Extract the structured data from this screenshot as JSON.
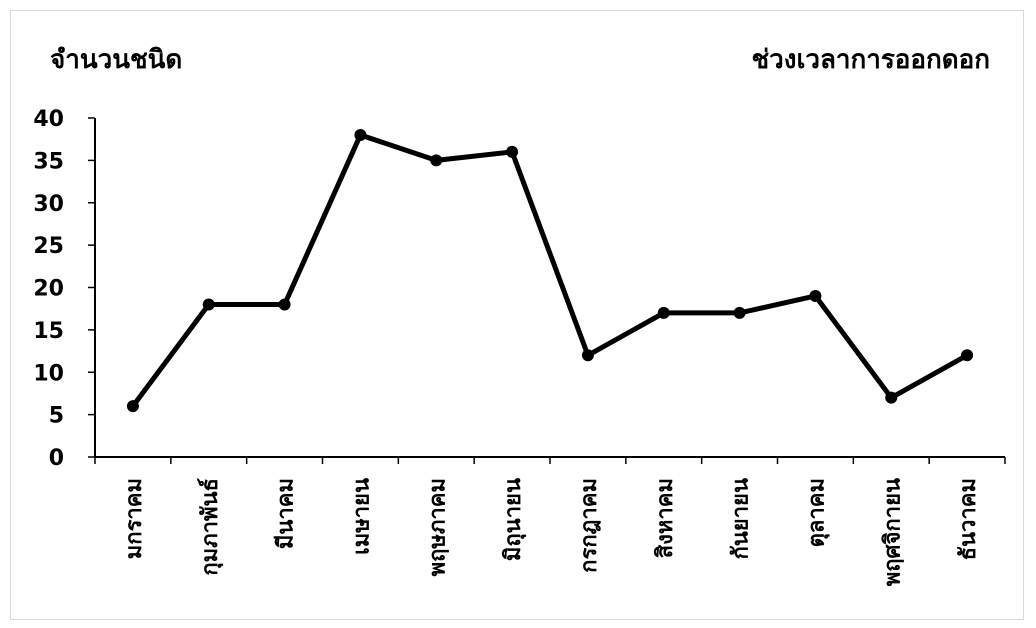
{
  "chart_data": {
    "type": "line",
    "title": "",
    "ylabel": "จำนวนชนิด",
    "xlabel": "ช่วงเวลาการออกดอก",
    "categories": [
      "มกราคม",
      "กุมภาพันธ์",
      "มีนาคม",
      "เมษายน",
      "พฤษภาคม",
      "มิถุนายน",
      "กรกฎาคม",
      "สิงหาคม",
      "กันยายน",
      "ตุลาคม",
      "พฤศจิกายน",
      "ธันวาคม"
    ],
    "values": [
      6,
      18,
      18,
      38,
      35,
      36,
      12,
      17,
      17,
      19,
      7,
      12
    ],
    "ylim": [
      0,
      40
    ],
    "yticks": [
      0,
      5,
      10,
      15,
      20,
      25,
      30,
      35,
      40
    ],
    "grid": false,
    "legend": "none",
    "line_color": "#000000",
    "marker_color": "#000000"
  }
}
